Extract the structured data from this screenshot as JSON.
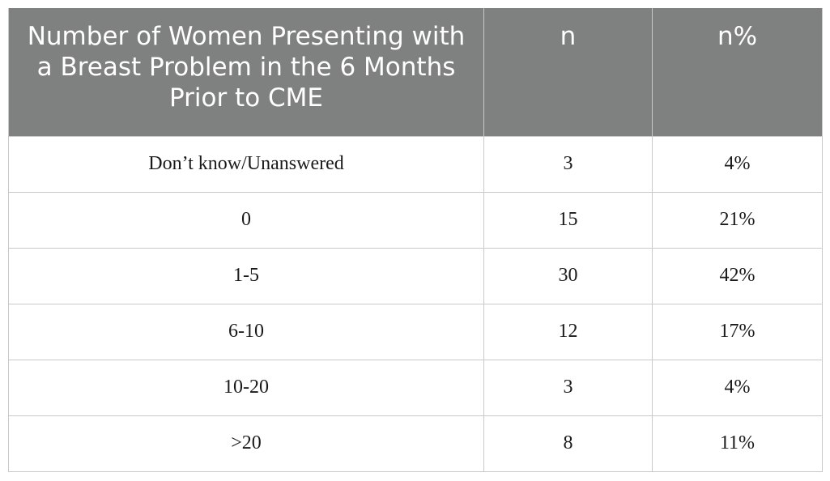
{
  "table": {
    "headers": [
      "Number of Women Presenting with a Breast Problem in the 6 Months Prior to CME",
      "n",
      "n%"
    ],
    "rows": [
      [
        "Don’t know/Unanswered",
        "3",
        "4%"
      ],
      [
        "0",
        "15",
        "21%"
      ],
      [
        "1-5",
        "30",
        "42%"
      ],
      [
        "6-10",
        "12",
        "17%"
      ],
      [
        "10-20",
        "3",
        "4%"
      ],
      [
        ">20",
        "8",
        "11%"
      ]
    ]
  },
  "colors": {
    "header_bg": "#7f8180",
    "header_text": "#ffffff",
    "grid": "#c9c9c9"
  }
}
